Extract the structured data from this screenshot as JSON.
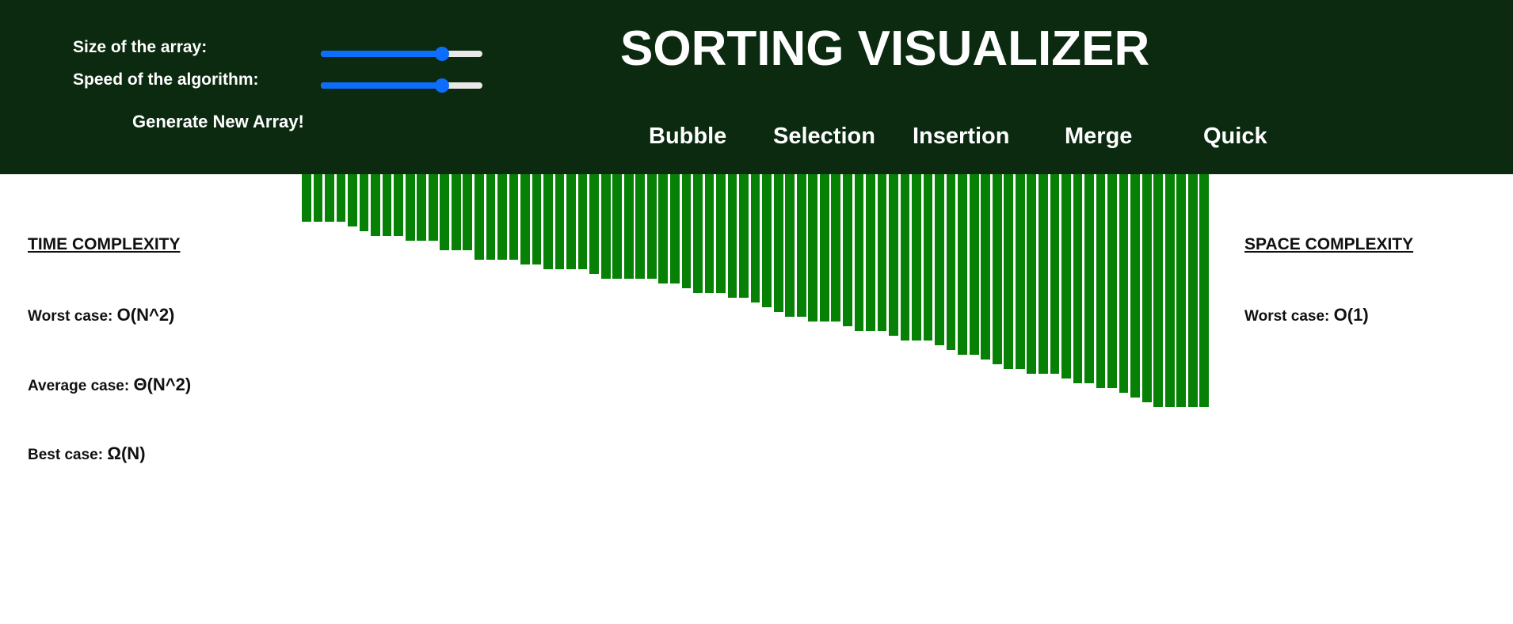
{
  "controls": {
    "size_label": "Size of the array:",
    "speed_label": "Speed of the algorithm:",
    "size_value": 0.75,
    "speed_value": 0.75,
    "generate_label": "Generate New Array!"
  },
  "header": {
    "title": "SORTING VISUALIZER",
    "algorithms": [
      "Bubble",
      "Selection",
      "Insertion",
      "Merge",
      "Quick"
    ]
  },
  "time_complexity": {
    "heading": "TIME COMPLEXITY",
    "worst_label": "Worst case:",
    "worst_value": "O(N^2)",
    "average_label": "Average case:",
    "average_value": "Θ(N^2)",
    "best_label": "Best case:",
    "best_value": "Ω(N)"
  },
  "space_complexity": {
    "heading": "SPACE COMPLEXITY",
    "worst_label": "Worst case:",
    "worst_value": "O(1)"
  },
  "array": {
    "values": [
      60,
      60,
      60,
      60,
      66,
      72,
      78,
      78,
      78,
      84,
      84,
      84,
      96,
      96,
      96,
      108,
      108,
      108,
      108,
      114,
      114,
      120,
      120,
      120,
      120,
      126,
      132,
      132,
      132,
      132,
      132,
      138,
      138,
      144,
      150,
      150,
      150,
      156,
      156,
      162,
      168,
      174,
      180,
      180,
      186,
      186,
      186,
      192,
      198,
      198,
      198,
      204,
      210,
      210,
      210,
      216,
      222,
      228,
      228,
      234,
      240,
      246,
      246,
      252,
      252,
      252,
      258,
      264,
      264,
      270,
      270,
      276,
      282,
      288,
      294,
      294,
      294,
      294,
      294
    ]
  },
  "colors": {
    "header_bg": "#0b2a10",
    "bar": "#068106",
    "slider_accent": "#0d6efd"
  }
}
